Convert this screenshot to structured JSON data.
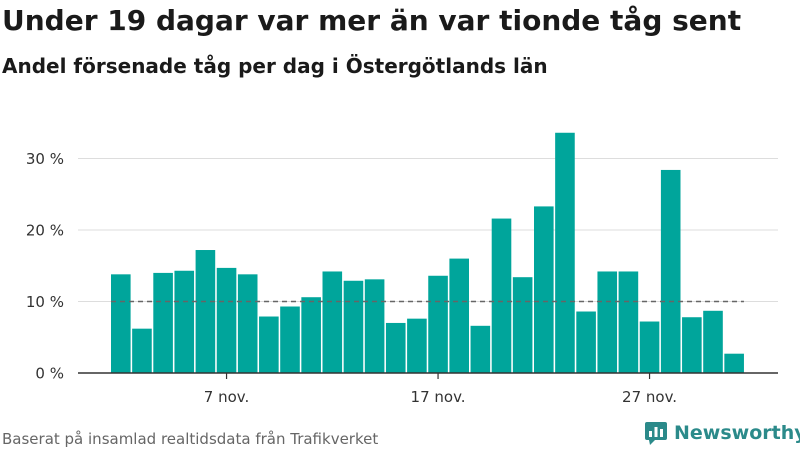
{
  "title": "Under 19 dagar var mer än var tionde tåg sent",
  "subtitle": "Andel försenade tåg per dag i Östergötlands län",
  "source": "Baserat på insamlad realtidsdata från Trafikverket",
  "brand": {
    "name": "Newsworthy",
    "icon": "newsworthy-logo-icon",
    "color": "#2b8a8a"
  },
  "colors": {
    "bar": "#00a59b",
    "grid": "#dddddd",
    "reference_line": "#666666",
    "axis": "#333333"
  },
  "chart_data": {
    "type": "bar",
    "x_start_day": 2,
    "month_label": "nov.",
    "x_tick_days": [
      7,
      17,
      27
    ],
    "x_tick_labels": [
      "7 nov.",
      "17 nov.",
      "27 nov."
    ],
    "values": [
      13.8,
      6.2,
      14.0,
      14.3,
      17.2,
      14.7,
      13.8,
      7.9,
      9.3,
      10.6,
      14.2,
      12.9,
      13.1,
      7.0,
      7.6,
      13.6,
      16.0,
      6.6,
      21.6,
      13.4,
      23.3,
      33.6,
      8.6,
      14.2,
      14.2,
      7.2,
      28.4,
      7.8,
      8.7,
      2.7
    ],
    "y_ticks": [
      0,
      10,
      20,
      30
    ],
    "y_tick_labels": [
      "0 %",
      "10 %",
      "20 %",
      "30 %"
    ],
    "ylim": [
      0,
      33.6
    ],
    "reference_line": 10,
    "grid": true,
    "xlabel": "",
    "ylabel": ""
  }
}
